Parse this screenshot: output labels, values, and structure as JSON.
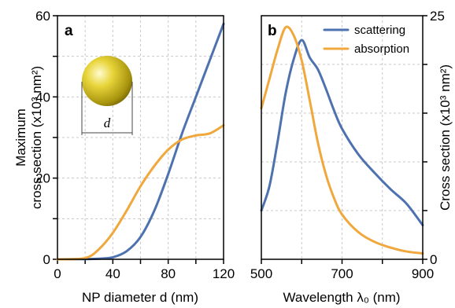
{
  "chart_data": [
    {
      "type": "line",
      "panel": "a",
      "xlabel": "NP diameter d  (nm)",
      "ylabel": "Maximum\ncross section (x10³ nm²)",
      "xlim": [
        0,
        120
      ],
      "ylim": [
        0,
        60
      ],
      "xticks": [
        "0",
        "40",
        "80",
        "120"
      ],
      "yticks": [
        "0",
        "20",
        "40",
        "60"
      ],
      "inset_label": "d",
      "series": [
        {
          "key": "scattering",
          "color": "#4e72b0",
          "x": [
            0,
            20,
            30,
            40,
            50,
            60,
            70,
            80,
            90,
            100,
            110,
            120
          ],
          "y": [
            0,
            0.05,
            0.15,
            0.5,
            2,
            5.5,
            12,
            21,
            31,
            40,
            49,
            58
          ]
        },
        {
          "key": "absorption",
          "color": "#f0a83c",
          "x": [
            0,
            20,
            30,
            40,
            50,
            60,
            70,
            80,
            90,
            100,
            110,
            120
          ],
          "y": [
            0,
            0.3,
            2.5,
            6.5,
            12,
            18,
            23,
            27,
            29.5,
            30.5,
            31,
            33
          ]
        }
      ]
    },
    {
      "type": "line",
      "panel": "b",
      "xlabel": "Wavelength  λ₀ (nm)",
      "ylabel": "Cross section (x10³ nm²)",
      "xlim": [
        500,
        900
      ],
      "ylim": [
        0,
        25
      ],
      "xticks": [
        "500",
        "700",
        "900"
      ],
      "yticks": [
        "0",
        "25"
      ],
      "legend_position": "top-right",
      "series": [
        {
          "name": "scattering",
          "color": "#4e72b0",
          "x": [
            500,
            520,
            540,
            560,
            580,
            600,
            620,
            640,
            660,
            680,
            700,
            740,
            780,
            820,
            860,
            900
          ],
          "y": [
            5,
            7.5,
            12,
            17,
            20.5,
            22.5,
            20.7,
            19.5,
            17.5,
            15.3,
            13.4,
            10.8,
            8.9,
            7.2,
            5.7,
            3.5
          ]
        },
        {
          "name": "absorption",
          "color": "#f0a83c",
          "x": [
            500,
            520,
            540,
            560,
            580,
            600,
            620,
            640,
            660,
            680,
            700,
            740,
            780,
            820,
            860,
            900
          ],
          "y": [
            15.5,
            18.5,
            21.5,
            23.8,
            23,
            20.4,
            16.3,
            12,
            8.7,
            6.3,
            4.6,
            2.8,
            1.8,
            1.2,
            0.8,
            0.6
          ]
        }
      ]
    }
  ]
}
